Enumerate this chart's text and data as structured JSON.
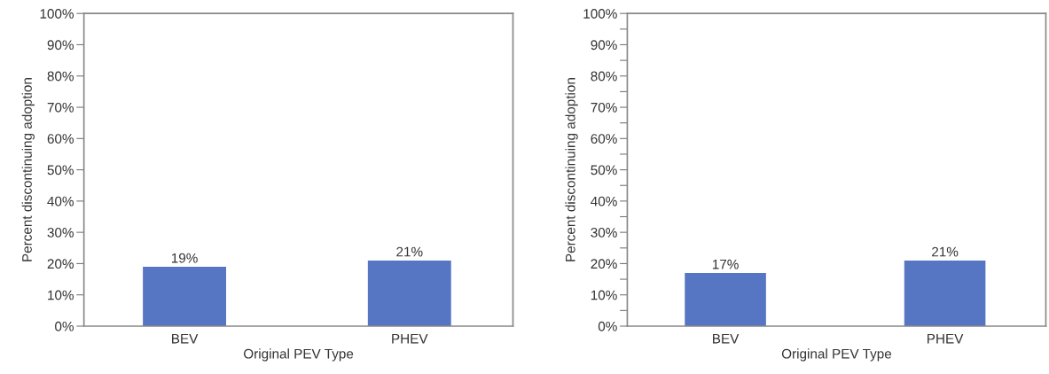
{
  "chart_data": [
    {
      "type": "bar",
      "xlabel": "Original PEV Type",
      "ylabel": "Percent discontinuing adoption",
      "categories": [
        "BEV",
        "PHEV"
      ],
      "values": [
        19,
        21
      ],
      "value_labels": [
        "19%",
        "21%"
      ],
      "color": "#5676c4",
      "ylim": [
        0,
        100
      ],
      "yticks": [
        {
          "value": 0,
          "label": "0%"
        },
        {
          "value": 10,
          "label": "10%"
        },
        {
          "value": 20,
          "label": "20%"
        },
        {
          "value": 30,
          "label": "30%"
        },
        {
          "value": 40,
          "label": "40%"
        },
        {
          "value": 50,
          "label": "50%"
        },
        {
          "value": 60,
          "label": "60%"
        },
        {
          "value": 70,
          "label": "70%"
        },
        {
          "value": 80,
          "label": "80%"
        },
        {
          "value": 90,
          "label": "90%"
        },
        {
          "value": 100,
          "label": "100%"
        }
      ],
      "grid": false,
      "legend": false
    },
    {
      "type": "bar",
      "xlabel": "Original PEV Type",
      "ylabel": "Percent discontinuing adoption",
      "categories": [
        "BEV",
        "PHEV"
      ],
      "values": [
        17,
        21
      ],
      "value_labels": [
        "17%",
        "21%"
      ],
      "color": "#5676c4",
      "ylim": [
        0,
        100
      ],
      "yticks": [
        {
          "value": 0,
          "label": "0%"
        },
        {
          "value": 5,
          "label": null
        },
        {
          "value": 10,
          "label": "10%"
        },
        {
          "value": 15,
          "label": null
        },
        {
          "value": 20,
          "label": "20%"
        },
        {
          "value": 25,
          "label": null
        },
        {
          "value": 30,
          "label": "30%"
        },
        {
          "value": 35,
          "label": null
        },
        {
          "value": 40,
          "label": "40%"
        },
        {
          "value": 45,
          "label": null
        },
        {
          "value": 50,
          "label": "50%"
        },
        {
          "value": 55,
          "label": null
        },
        {
          "value": 60,
          "label": "60%"
        },
        {
          "value": 65,
          "label": null
        },
        {
          "value": 70,
          "label": "70%"
        },
        {
          "value": 75,
          "label": null
        },
        {
          "value": 80,
          "label": "80%"
        },
        {
          "value": 85,
          "label": null
        },
        {
          "value": 90,
          "label": "90%"
        },
        {
          "value": 95,
          "label": null
        },
        {
          "value": 100,
          "label": "100%"
        }
      ],
      "grid": false,
      "legend": false
    }
  ]
}
